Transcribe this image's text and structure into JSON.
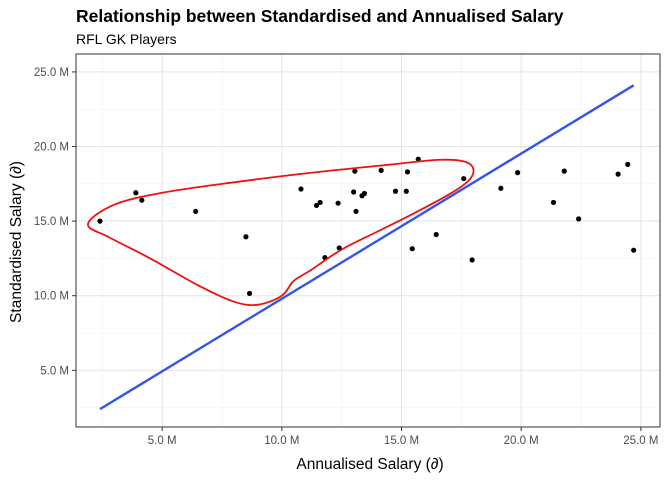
{
  "chart_data": {
    "type": "scatter",
    "title": "Relationship between Standardised and Annualised Salary",
    "subtitle": "RFL GK Players",
    "xlabel": "Annualised Salary (∂)",
    "ylabel": "Standardised Salary (∂)",
    "xlim": [
      1400000,
      25800000
    ],
    "ylim": [
      1200000,
      26200000
    ],
    "x_ticks": [
      5000000,
      10000000,
      15000000,
      20000000,
      25000000
    ],
    "x_tick_labels": [
      "5.0 M",
      "10.0 M",
      "15.0 M",
      "20.0 M",
      "25.0 M"
    ],
    "y_ticks": [
      5000000,
      10000000,
      15000000,
      20000000,
      25000000
    ],
    "y_tick_labels": [
      "5.0 M",
      "10.0 M",
      "15.0 M",
      "20.0 M",
      "25.0 M"
    ],
    "grid": true,
    "points": [
      {
        "x": 2400000,
        "y": 15000000
      },
      {
        "x": 3900000,
        "y": 16900000
      },
      {
        "x": 4150000,
        "y": 16400000
      },
      {
        "x": 6400000,
        "y": 15650000
      },
      {
        "x": 8500000,
        "y": 13950000
      },
      {
        "x": 8650000,
        "y": 10150000
      },
      {
        "x": 10800000,
        "y": 17150000
      },
      {
        "x": 11450000,
        "y": 16050000
      },
      {
        "x": 11600000,
        "y": 16250000
      },
      {
        "x": 11800000,
        "y": 12550000
      },
      {
        "x": 12350000,
        "y": 16200000
      },
      {
        "x": 12400000,
        "y": 13200000
      },
      {
        "x": 13000000,
        "y": 16950000
      },
      {
        "x": 13050000,
        "y": 18350000
      },
      {
        "x": 13100000,
        "y": 15650000
      },
      {
        "x": 13350000,
        "y": 16700000
      },
      {
        "x": 13450000,
        "y": 16850000
      },
      {
        "x": 14150000,
        "y": 18400000
      },
      {
        "x": 14750000,
        "y": 17000000
      },
      {
        "x": 15200000,
        "y": 17000000
      },
      {
        "x": 15250000,
        "y": 18300000
      },
      {
        "x": 15450000,
        "y": 13150000
      },
      {
        "x": 15700000,
        "y": 19150000
      },
      {
        "x": 16450000,
        "y": 14100000
      },
      {
        "x": 17600000,
        "y": 17850000
      },
      {
        "x": 17950000,
        "y": 12400000
      },
      {
        "x": 19150000,
        "y": 17200000
      },
      {
        "x": 19850000,
        "y": 18250000
      },
      {
        "x": 21350000,
        "y": 16250000
      },
      {
        "x": 21800000,
        "y": 18350000
      },
      {
        "x": 22400000,
        "y": 15150000
      },
      {
        "x": 24050000,
        "y": 18150000
      },
      {
        "x": 24450000,
        "y": 18800000
      },
      {
        "x": 24700000,
        "y": 13050000
      }
    ],
    "reference_line": {
      "color": "#3355ee",
      "points": [
        [
          2400000,
          2400000
        ],
        [
          24700000,
          24100000
        ]
      ]
    },
    "contour": {
      "color": "#ee1111",
      "points": [
        [
          1900000,
          14800000
        ],
        [
          3000000,
          16100000
        ],
        [
          5000000,
          16900000
        ],
        [
          8000000,
          17600000
        ],
        [
          11000000,
          18200000
        ],
        [
          14000000,
          18700000
        ],
        [
          16500000,
          19100000
        ],
        [
          17600000,
          19000000
        ],
        [
          18000000,
          18500000
        ],
        [
          17800000,
          17700000
        ],
        [
          17000000,
          16800000
        ],
        [
          15500000,
          15500000
        ],
        [
          14000000,
          14300000
        ],
        [
          12500000,
          13100000
        ],
        [
          11200000,
          11700000
        ],
        [
          10500000,
          11000000
        ],
        [
          10000000,
          10000000
        ],
        [
          9000000,
          9400000
        ],
        [
          8000000,
          9600000
        ],
        [
          6500000,
          10700000
        ],
        [
          4500000,
          12500000
        ],
        [
          2800000,
          13900000
        ],
        [
          1900000,
          14800000
        ]
      ]
    }
  }
}
